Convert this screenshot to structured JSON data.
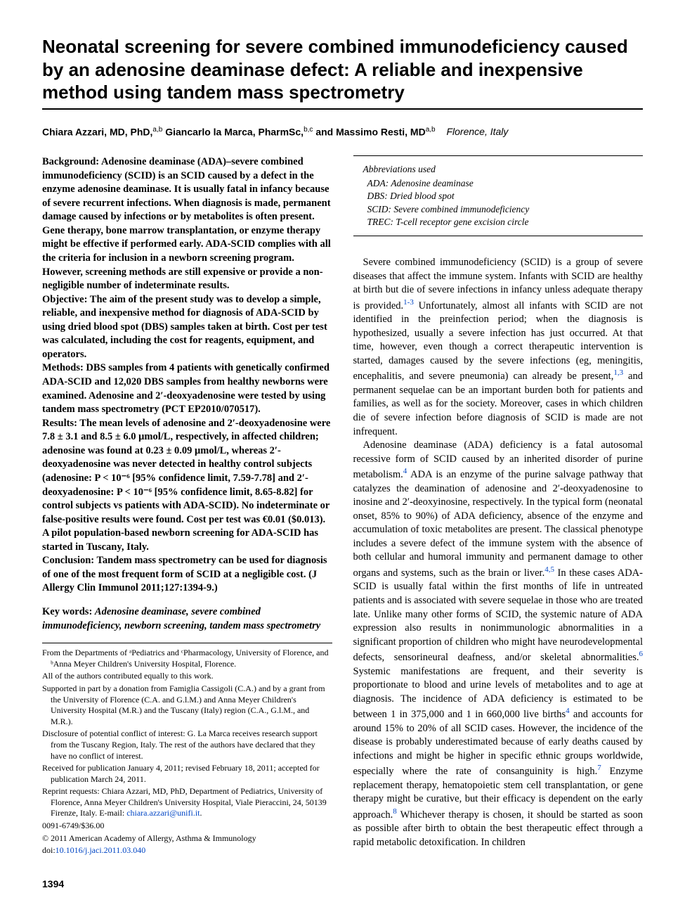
{
  "title": "Neonatal screening for severe combined immunodeficiency caused by an adenosine deaminase defect: A reliable and inexpensive method using tandem mass spectrometry",
  "authors": {
    "a1_name": "Chiara Azzari, MD, PhD,",
    "a1_aff": "a,b",
    "a2_name": " Giancarlo la Marca, PharmSc,",
    "a2_aff": "b,c",
    "a3_prefix": " and ",
    "a3_name": "Massimo Resti, MD",
    "a3_aff": "a,b",
    "loc": "Florence, Italy"
  },
  "abstract": {
    "background": "Background: Adenosine deaminase (ADA)–severe combined immunodeficiency (SCID) is an SCID caused by a defect in the enzyme adenosine deaminase. It is usually fatal in infancy because of severe recurrent infections. When diagnosis is made, permanent damage caused by infections or by metabolites is often present. Gene therapy, bone marrow transplantation, or enzyme therapy might be effective if performed early. ADA-SCID complies with all the criteria for inclusion in a newborn screening program. However, screening methods are still expensive or provide a non-negligible number of indeterminate results.",
    "objective": "Objective: The aim of the present study was to develop a simple, reliable, and inexpensive method for diagnosis of ADA-SCID by using dried blood spot (DBS) samples taken at birth. Cost per test was calculated, including the cost for reagents, equipment, and operators.",
    "methods": "Methods: DBS samples from 4 patients with genetically confirmed ADA-SCID and 12,020 DBS samples from healthy newborns were examined. Adenosine and 2′-deoxyadenosine were tested by using tandem mass spectrometry (PCT EP2010/070517).",
    "results": "Results: The mean levels of adenosine and 2′-deoxyadenosine were 7.8 ± 3.1 and 8.5 ± 6.0 μmol/L, respectively, in affected children; adenosine was found at 0.23 ± 0.09 μmol/L, whereas 2′-deoxyadenosine was never detected in healthy control subjects (adenosine: P < 10⁻⁶ [95% confidence limit, 7.59-7.78] and 2′-deoxyadenosine: P < 10⁻⁶ [95% confidence limit, 8.65-8.82] for control subjects vs patients with ADA-SCID). No indeterminate or false-positive results were found. Cost per test was €0.01 ($0.013). A pilot population-based newborn screening for ADA-SCID has started in Tuscany, Italy.",
    "conclusion": "Conclusion: Tandem mass spectrometry can be used for diagnosis of one of the most frequent form of SCID at a negligible cost. (J Allergy Clin Immunol 2011;127:1394-9.)"
  },
  "keywords": {
    "label": "Key words: ",
    "text": "Adenosine deaminase, severe combined immunodeficiency, newborn screening, tandem mass spectrometry"
  },
  "footnotes": {
    "from": "From the Departments of ᵃPediatrics and ᶜPharmacology, University of Florence, and ᵇAnna Meyer Children's University Hospital, Florence.",
    "contrib": "All of the authors contributed equally to this work.",
    "support": "Supported in part by a donation from Famiglia Cassigoli (C.A.) and by a grant from the University of Florence (C.A. and G.l.M.) and Anna Meyer Children's University Hospital (M.R.) and the Tuscany (Italy) region (C.A., G.l.M., and M.R.).",
    "disclosure": "Disclosure of potential conflict of interest: G. La Marca receives research support from the Tuscany Region, Italy. The rest of the authors have declared that they have no conflict of interest.",
    "received": "Received for publication January 4, 2011; revised February 18, 2011; accepted for publication March 24, 2011.",
    "reprint": "Reprint requests: Chiara Azzari, MD, PhD, Department of Pediatrics, University of Florence, Anna Meyer Children's University Hospital, Viale Pieraccini, 24, 50139 Firenze, Italy. E-mail: ",
    "email": "chiara.azzari@unifi.it",
    "reprint_end": ".",
    "issn": "0091-6749/$36.00",
    "copyright": "© 2011 American Academy of Allergy, Asthma & Immunology",
    "doi_label": "doi:",
    "doi": "10.1016/j.jaci.2011.03.040"
  },
  "abbrev": {
    "title": "Abbreviations used",
    "rows": [
      "ADA: Adenosine deaminase",
      "DBS: Dried blood spot",
      "SCID: Severe combined immunodeficiency",
      "TREC: T-cell receptor gene excision circle"
    ]
  },
  "body": {
    "p1a": "Severe combined immunodeficiency (SCID) is a group of severe diseases that affect the immune system. Infants with SCID are healthy at birth but die of severe infections in infancy unless adequate therapy is provided.",
    "r1": "1-3",
    "p1b": " Unfortunately, almost all infants with SCID are not identified in the preinfection period; when the diagnosis is hypothesized, usually a severe infection has just occurred. At that time, however, even though a correct therapeutic intervention is started, damages caused by the severe infections (eg, meningitis, encephalitis, and severe pneumonia) can already be present,",
    "r2": "1,3",
    "p1c": " and permanent sequelae can be an important burden both for patients and families, as well as for the society. Moreover, cases in which children die of severe infection before diagnosis of SCID is made are not infrequent.",
    "p2a": "Adenosine deaminase (ADA) deficiency is a fatal autosomal recessive form of SCID caused by an inherited disorder of purine metabolism.",
    "r3": "4",
    "p2b": " ADA is an enzyme of the purine salvage pathway that catalyzes the deamination of adenosine and 2′-deoxyadenosine to inosine and 2′-deoxyinosine, respectively. In the typical form (neonatal onset, 85% to 90%) of ADA deficiency, absence of the enzyme and accumulation of toxic metabolites are present. The classical phenotype includes a severe defect of the immune system with the absence of both cellular and humoral immunity and permanent damage to other organs and systems, such as the brain or liver.",
    "r4": "4,5",
    "p2c": " In these cases ADA-SCID is usually fatal within the first months of life in untreated patients and is associated with severe sequelae in those who are treated late. Unlike many other forms of SCID, the systemic nature of ADA expression also results in nonimmunologic abnormalities in a significant proportion of children who might have neurodevelopmental defects, sensorineural deafness, and/or skeletal abnormalities.",
    "r5": "6",
    "p2d": " Systemic manifestations are frequent, and their severity is proportionate to blood and urine levels of metabolites and to age at diagnosis. The incidence of ADA deficiency is estimated to be between 1 in 375,000 and 1 in 660,000 live births",
    "r6": "4",
    "p2e": " and accounts for around 15% to 20% of all SCID cases. However, the incidence of the disease is probably underestimated because of early deaths caused by infections and might be higher in specific ethnic groups worldwide, especially where the rate of consanguinity is high.",
    "r7": "7",
    "p2f": " Enzyme replacement therapy, hematopoietic stem cell transplantation, or gene therapy might be curative, but their efficacy is dependent on the early approach.",
    "r8": "8",
    "p2g": " Whichever therapy is chosen, it should be started as soon as possible after birth to obtain the best therapeutic effect through a rapid metabolic detoxification. In children"
  },
  "page_num": "1394"
}
